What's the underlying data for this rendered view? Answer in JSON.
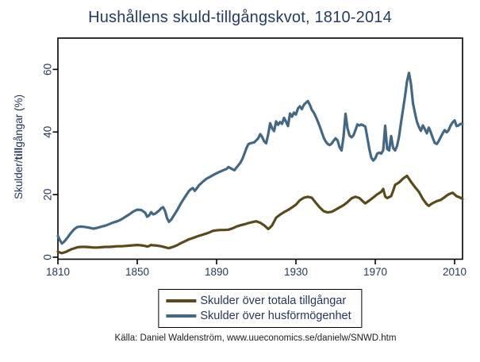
{
  "title": "Hushållens skuld-tillgångskvot, 1810-2014",
  "source_note": "Källa: Daniel Waldenström, www.uueconomics.se/danielw/SNWD.htm",
  "y_axis_label": {
    "pre": "Skulder/",
    "bold": "till",
    "post": "gångar (%)",
    "full": "Skulder/tillgångar (%)"
  },
  "colors": {
    "background": "#ffffff",
    "title_text": "#253a66",
    "axis_text": "#24375f",
    "frame": "#000000",
    "series_total_assets": "#5a4a1b",
    "series_housing_wealth": "#426885"
  },
  "legend": {
    "items": [
      {
        "label": "Skulder över totala tillgångar"
      },
      {
        "label": "Skulder över husförmögenhet"
      }
    ]
  },
  "chart_data": {
    "type": "line",
    "title": "Hushållens skuld-tillgångskvot, 1810-2014",
    "xlabel": "",
    "ylabel": "Skulder/tillgångar (%)",
    "xlim": [
      1810,
      2014
    ],
    "ylim": [
      0,
      70
    ],
    "x_ticks": [
      1810,
      1850,
      1890,
      1930,
      1970,
      2010
    ],
    "y_ticks": [
      0,
      20,
      40,
      60
    ],
    "grid": false,
    "legend_position": "below-center",
    "series": [
      {
        "name": "Skulder över totala tillgångar",
        "color": "#5a4a1b",
        "points": [
          [
            1810,
            1.8
          ],
          [
            1811,
            1.5
          ],
          [
            1812,
            1.3
          ],
          [
            1813,
            1.5
          ],
          [
            1814,
            1.7
          ],
          [
            1815,
            2.0
          ],
          [
            1816,
            2.3
          ],
          [
            1817,
            2.6
          ],
          [
            1818,
            2.8
          ],
          [
            1819,
            3.0
          ],
          [
            1820,
            3.2
          ],
          [
            1822,
            3.3
          ],
          [
            1824,
            3.3
          ],
          [
            1826,
            3.2
          ],
          [
            1828,
            3.1
          ],
          [
            1830,
            3.1
          ],
          [
            1832,
            3.2
          ],
          [
            1834,
            3.3
          ],
          [
            1836,
            3.3
          ],
          [
            1838,
            3.4
          ],
          [
            1840,
            3.5
          ],
          [
            1842,
            3.5
          ],
          [
            1844,
            3.6
          ],
          [
            1846,
            3.7
          ],
          [
            1848,
            3.8
          ],
          [
            1850,
            3.9
          ],
          [
            1852,
            3.8
          ],
          [
            1854,
            3.6
          ],
          [
            1855,
            3.4
          ],
          [
            1856,
            3.6
          ],
          [
            1857,
            3.9
          ],
          [
            1858,
            3.8
          ],
          [
            1860,
            3.7
          ],
          [
            1862,
            3.5
          ],
          [
            1864,
            3.2
          ],
          [
            1865,
            3.0
          ],
          [
            1866,
            2.9
          ],
          [
            1867,
            3.1
          ],
          [
            1868,
            3.3
          ],
          [
            1870,
            3.8
          ],
          [
            1872,
            4.5
          ],
          [
            1874,
            5.1
          ],
          [
            1876,
            5.7
          ],
          [
            1878,
            6.1
          ],
          [
            1880,
            6.6
          ],
          [
            1882,
            7.0
          ],
          [
            1884,
            7.4
          ],
          [
            1886,
            7.8
          ],
          [
            1888,
            8.4
          ],
          [
            1890,
            8.6
          ],
          [
            1892,
            8.7
          ],
          [
            1894,
            8.7
          ],
          [
            1896,
            8.8
          ],
          [
            1898,
            9.2
          ],
          [
            1900,
            9.8
          ],
          [
            1902,
            10.2
          ],
          [
            1904,
            10.5
          ],
          [
            1906,
            10.9
          ],
          [
            1908,
            11.2
          ],
          [
            1910,
            11.5
          ],
          [
            1912,
            11.0
          ],
          [
            1914,
            10.2
          ],
          [
            1915,
            9.6
          ],
          [
            1916,
            9.0
          ],
          [
            1917,
            9.5
          ],
          [
            1918,
            10.2
          ],
          [
            1919,
            11.4
          ],
          [
            1920,
            12.6
          ],
          [
            1922,
            13.6
          ],
          [
            1924,
            14.4
          ],
          [
            1926,
            15.1
          ],
          [
            1928,
            15.9
          ],
          [
            1930,
            16.8
          ],
          [
            1932,
            18.2
          ],
          [
            1934,
            19.0
          ],
          [
            1936,
            19.3
          ],
          [
            1938,
            19.0
          ],
          [
            1940,
            17.4
          ],
          [
            1942,
            15.9
          ],
          [
            1944,
            14.7
          ],
          [
            1946,
            14.3
          ],
          [
            1948,
            14.5
          ],
          [
            1950,
            15.2
          ],
          [
            1952,
            15.9
          ],
          [
            1954,
            16.6
          ],
          [
            1956,
            17.6
          ],
          [
            1958,
            18.8
          ],
          [
            1960,
            19.3
          ],
          [
            1962,
            18.9
          ],
          [
            1964,
            17.7
          ],
          [
            1965,
            17.2
          ],
          [
            1967,
            18.1
          ],
          [
            1969,
            19.1
          ],
          [
            1971,
            20.1
          ],
          [
            1973,
            20.9
          ],
          [
            1974,
            21.8
          ],
          [
            1975,
            19.4
          ],
          [
            1976,
            18.9
          ],
          [
            1977,
            19.2
          ],
          [
            1978,
            19.5
          ],
          [
            1979,
            21.2
          ],
          [
            1980,
            23.1
          ],
          [
            1982,
            23.9
          ],
          [
            1984,
            25.1
          ],
          [
            1986,
            26.0
          ],
          [
            1988,
            24.1
          ],
          [
            1990,
            22.4
          ],
          [
            1992,
            20.9
          ],
          [
            1994,
            18.6
          ],
          [
            1996,
            16.9
          ],
          [
            1997,
            16.4
          ],
          [
            1998,
            16.9
          ],
          [
            1999,
            17.3
          ],
          [
            2001,
            17.9
          ],
          [
            2003,
            18.3
          ],
          [
            2005,
            19.2
          ],
          [
            2007,
            20.1
          ],
          [
            2009,
            20.6
          ],
          [
            2011,
            19.5
          ],
          [
            2013,
            19.0
          ],
          [
            2014,
            18.6
          ]
        ]
      },
      {
        "name": "Skulder över husförmögenhet",
        "color": "#426885",
        "points": [
          [
            1810,
            6.8
          ],
          [
            1811,
            5.4
          ],
          [
            1812,
            4.4
          ],
          [
            1813,
            4.9
          ],
          [
            1814,
            5.6
          ],
          [
            1815,
            6.4
          ],
          [
            1816,
            7.3
          ],
          [
            1817,
            8.1
          ],
          [
            1818,
            8.8
          ],
          [
            1819,
            9.3
          ],
          [
            1820,
            9.7
          ],
          [
            1822,
            9.8
          ],
          [
            1824,
            9.6
          ],
          [
            1826,
            9.4
          ],
          [
            1828,
            9.1
          ],
          [
            1830,
            9.4
          ],
          [
            1832,
            9.8
          ],
          [
            1834,
            10.1
          ],
          [
            1836,
            10.6
          ],
          [
            1838,
            11.1
          ],
          [
            1840,
            11.5
          ],
          [
            1842,
            12.1
          ],
          [
            1844,
            12.9
          ],
          [
            1846,
            13.7
          ],
          [
            1848,
            14.6
          ],
          [
            1850,
            15.2
          ],
          [
            1852,
            15.1
          ],
          [
            1854,
            14.2
          ],
          [
            1855,
            12.9
          ],
          [
            1856,
            13.4
          ],
          [
            1857,
            14.4
          ],
          [
            1858,
            13.7
          ],
          [
            1859,
            13.9
          ],
          [
            1861,
            14.9
          ],
          [
            1862,
            15.6
          ],
          [
            1863,
            16.0
          ],
          [
            1864,
            14.8
          ],
          [
            1865,
            12.5
          ],
          [
            1866,
            11.3
          ],
          [
            1867,
            11.9
          ],
          [
            1868,
            12.9
          ],
          [
            1870,
            14.9
          ],
          [
            1872,
            17.2
          ],
          [
            1874,
            19.2
          ],
          [
            1876,
            21.1
          ],
          [
            1877,
            21.7
          ],
          [
            1878,
            22.1
          ],
          [
            1879,
            21.2
          ],
          [
            1880,
            22.0
          ],
          [
            1881,
            22.9
          ],
          [
            1883,
            24.1
          ],
          [
            1885,
            25.1
          ],
          [
            1887,
            25.8
          ],
          [
            1889,
            26.5
          ],
          [
            1891,
            27.1
          ],
          [
            1893,
            27.7
          ],
          [
            1895,
            28.2
          ],
          [
            1896,
            28.8
          ],
          [
            1898,
            28.1
          ],
          [
            1899,
            27.8
          ],
          [
            1900,
            28.6
          ],
          [
            1902,
            30.2
          ],
          [
            1903,
            31.4
          ],
          [
            1904,
            33.0
          ],
          [
            1905,
            34.8
          ],
          [
            1906,
            36.1
          ],
          [
            1907,
            36.4
          ],
          [
            1909,
            36.7
          ],
          [
            1911,
            38.0
          ],
          [
            1912,
            39.3
          ],
          [
            1913,
            38.4
          ],
          [
            1914,
            37.0
          ],
          [
            1915,
            36.4
          ],
          [
            1916,
            39.2
          ],
          [
            1917,
            42.8
          ],
          [
            1918,
            41.2
          ],
          [
            1919,
            40.3
          ],
          [
            1920,
            43.4
          ],
          [
            1921,
            42.3
          ],
          [
            1922,
            43.2
          ],
          [
            1923,
            42.6
          ],
          [
            1924,
            44.5
          ],
          [
            1925,
            43.3
          ],
          [
            1926,
            41.9
          ],
          [
            1927,
            45.9
          ],
          [
            1928,
            44.9
          ],
          [
            1929,
            46.2
          ],
          [
            1930,
            45.6
          ],
          [
            1931,
            47.5
          ],
          [
            1932,
            48.2
          ],
          [
            1933,
            47.3
          ],
          [
            1934,
            48.7
          ],
          [
            1935,
            49.3
          ],
          [
            1936,
            49.9
          ],
          [
            1937,
            48.7
          ],
          [
            1938,
            47.1
          ],
          [
            1939,
            46.2
          ],
          [
            1940,
            44.9
          ],
          [
            1941,
            43.4
          ],
          [
            1942,
            41.8
          ],
          [
            1943,
            40.0
          ],
          [
            1944,
            38.2
          ],
          [
            1945,
            37.0
          ],
          [
            1946,
            36.2
          ],
          [
            1947,
            35.8
          ],
          [
            1948,
            36.3
          ],
          [
            1949,
            37.2
          ],
          [
            1950,
            38.0
          ],
          [
            1951,
            37.3
          ],
          [
            1952,
            35.1
          ],
          [
            1953,
            34.1
          ],
          [
            1954,
            38.5
          ],
          [
            1955,
            45.8
          ],
          [
            1956,
            41.2
          ],
          [
            1957,
            38.9
          ],
          [
            1958,
            38.3
          ],
          [
            1959,
            38.9
          ],
          [
            1960,
            40.6
          ],
          [
            1961,
            42.4
          ],
          [
            1962,
            42.1
          ],
          [
            1963,
            42.4
          ],
          [
            1964,
            42.1
          ],
          [
            1965,
            41.7
          ],
          [
            1966,
            38.2
          ],
          [
            1967,
            34.6
          ],
          [
            1968,
            31.8
          ],
          [
            1969,
            30.9
          ],
          [
            1970,
            31.6
          ],
          [
            1971,
            33.1
          ],
          [
            1972,
            33.4
          ],
          [
            1973,
            33.1
          ],
          [
            1974,
            34.2
          ],
          [
            1975,
            42.0
          ],
          [
            1976,
            34.6
          ],
          [
            1977,
            34.1
          ],
          [
            1978,
            38.7
          ],
          [
            1979,
            34.9
          ],
          [
            1980,
            34.1
          ],
          [
            1981,
            35.6
          ],
          [
            1982,
            38.6
          ],
          [
            1983,
            43.1
          ],
          [
            1984,
            47.2
          ],
          [
            1985,
            51.4
          ],
          [
            1986,
            56.2
          ],
          [
            1987,
            58.9
          ],
          [
            1988,
            55.4
          ],
          [
            1989,
            49.2
          ],
          [
            1990,
            46.1
          ],
          [
            1991,
            43.3
          ],
          [
            1992,
            41.6
          ],
          [
            1993,
            40.4
          ],
          [
            1994,
            42.1
          ],
          [
            1995,
            40.9
          ],
          [
            1996,
            39.6
          ],
          [
            1997,
            41.4
          ],
          [
            1998,
            39.9
          ],
          [
            1999,
            38.1
          ],
          [
            2000,
            36.5
          ],
          [
            2001,
            36.2
          ],
          [
            2002,
            37.1
          ],
          [
            2003,
            38.4
          ],
          [
            2004,
            39.6
          ],
          [
            2005,
            40.6
          ],
          [
            2006,
            39.9
          ],
          [
            2007,
            40.6
          ],
          [
            2008,
            42.1
          ],
          [
            2009,
            43.1
          ],
          [
            2010,
            43.7
          ],
          [
            2011,
            41.9
          ],
          [
            2012,
            42.1
          ],
          [
            2013,
            42.6
          ],
          [
            2014,
            42.5
          ]
        ]
      }
    ]
  }
}
